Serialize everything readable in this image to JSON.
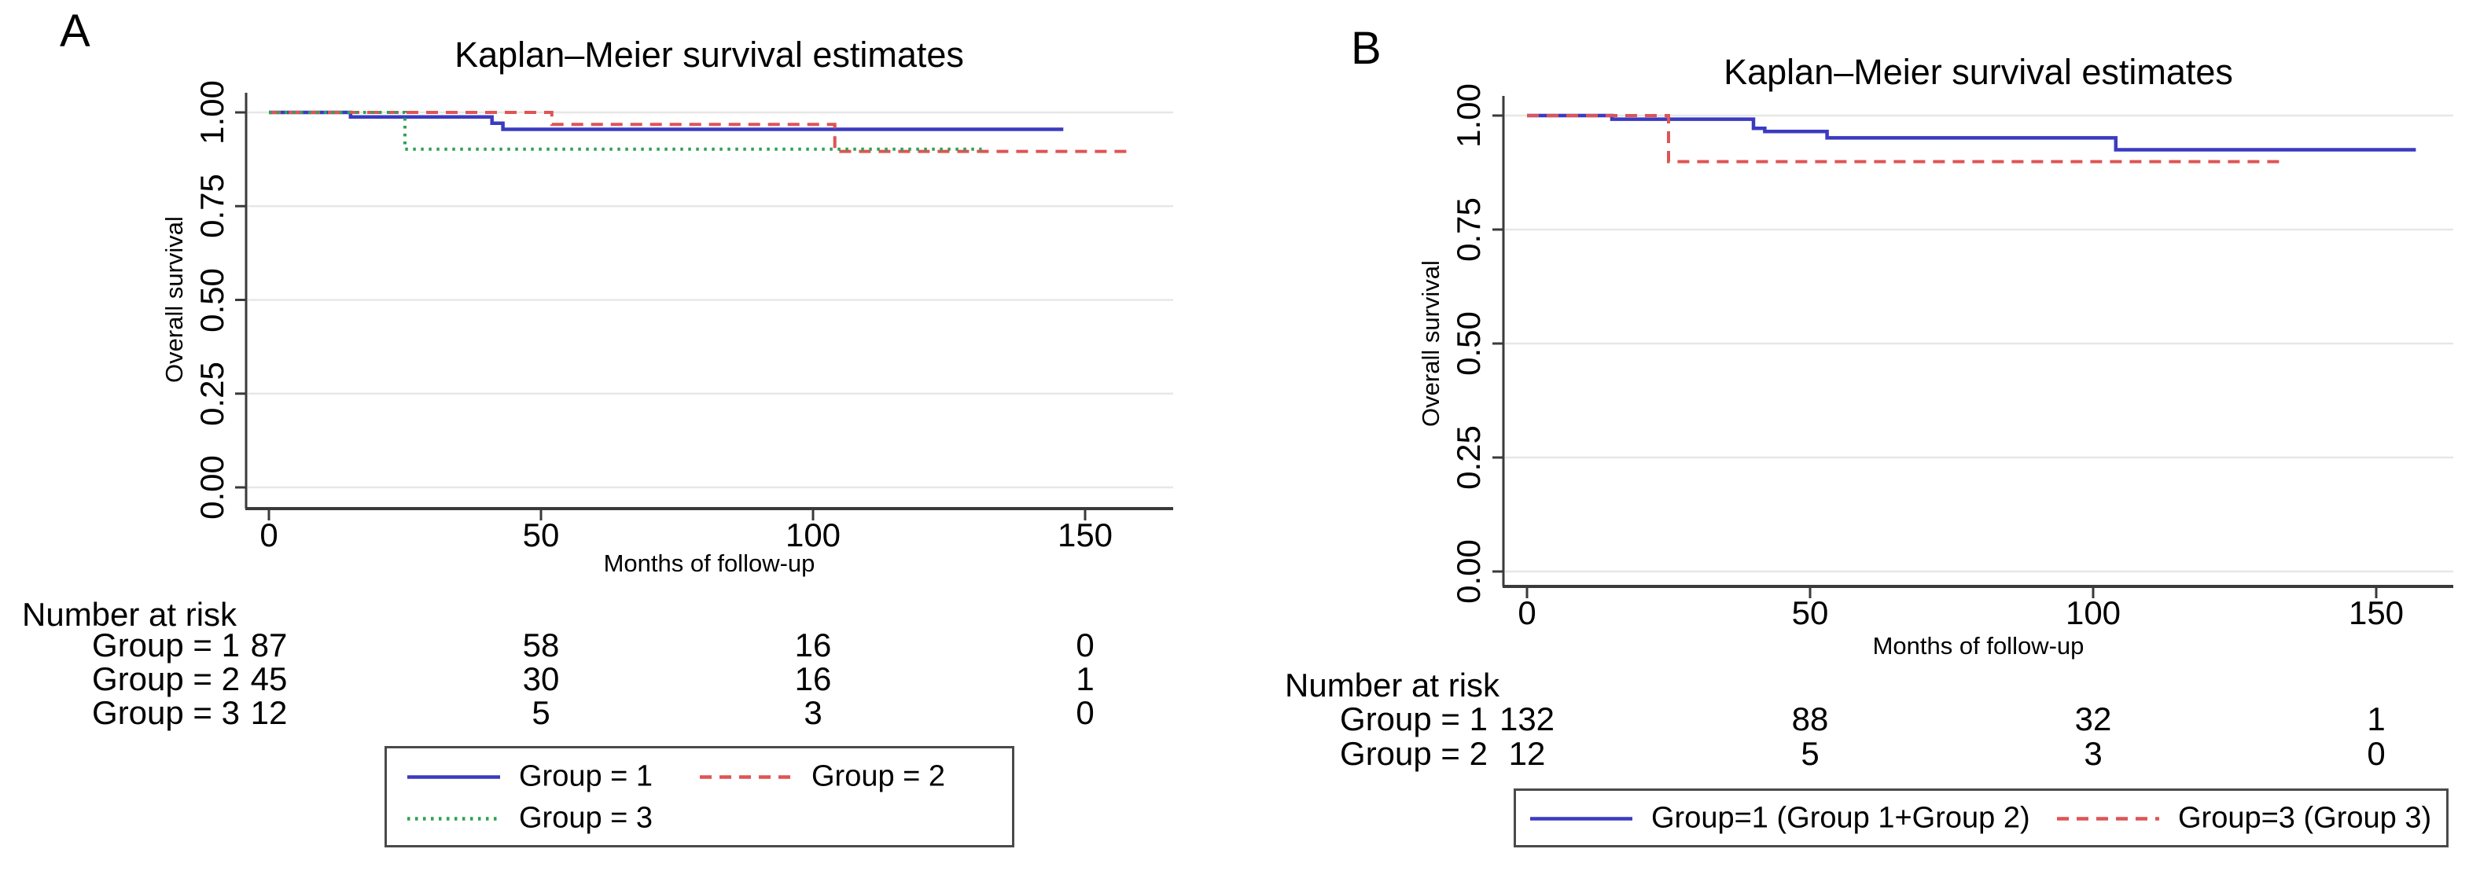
{
  "chart_data": [
    {
      "panel_label": "A",
      "type": "line",
      "subtype": "kaplan-meier-step",
      "title": "Kaplan–Meier survival estimates",
      "xlabel": "Months of follow-up",
      "ylabel": "Overall survival",
      "xlim": [
        0,
        166
      ],
      "ylim": [
        0,
        1
      ],
      "grid": "horizontal",
      "legend_position": "below",
      "x_ticks": [
        0,
        50,
        100,
        150
      ],
      "x_tick_labels": [
        "0",
        "50",
        "100",
        "150"
      ],
      "y_ticks": [
        1.0,
        0.75,
        0.5,
        0.25,
        0.0
      ],
      "y_tick_labels": [
        "1.00",
        "0.75",
        "0.50",
        "0.25",
        "0.00"
      ],
      "series": [
        {
          "name": "Group = 1",
          "color": "#3b3bc0",
          "line_style": "solid",
          "points": [
            [
              0,
              1
            ],
            [
              15,
              1
            ],
            [
              15,
              0.988
            ],
            [
              41,
              0.988
            ],
            [
              41,
              0.971
            ],
            [
              43,
              0.971
            ],
            [
              43,
              0.955
            ],
            [
              146,
              0.955
            ]
          ]
        },
        {
          "name": "Group = 2",
          "color": "#df5454",
          "line_style": "dashed",
          "points": [
            [
              0,
              1
            ],
            [
              52,
              1
            ],
            [
              52,
              0.968
            ],
            [
              104,
              0.968
            ],
            [
              104,
              0.896
            ],
            [
              158,
              0.896
            ]
          ]
        },
        {
          "name": "Group = 3",
          "color": "#2fa153",
          "line_style": "dotted",
          "points": [
            [
              0,
              1
            ],
            [
              25,
              1
            ],
            [
              25,
              0.902
            ],
            [
              131,
              0.902
            ]
          ]
        }
      ],
      "legend_rows": [
        [
          0,
          1
        ],
        [
          2
        ]
      ],
      "number_at_risk": {
        "header": "Number at risk",
        "columns_at_months": [
          0,
          50,
          100,
          150
        ],
        "rows": [
          {
            "label": "Group = 1",
            "counts": [
              "87",
              "58",
              "16",
              "0"
            ]
          },
          {
            "label": "Group = 2",
            "counts": [
              "45",
              "30",
              "16",
              "1"
            ]
          },
          {
            "label": "Group = 3",
            "counts": [
              "12",
              "5",
              "3",
              "0"
            ]
          }
        ]
      }
    },
    {
      "panel_label": "B",
      "type": "line",
      "subtype": "kaplan-meier-step",
      "title": "Kaplan–Meier survival estimates",
      "xlabel": "Months of follow-up",
      "ylabel": "Overall survival",
      "xlim": [
        0,
        164
      ],
      "ylim": [
        0,
        1
      ],
      "grid": "horizontal",
      "legend_position": "below",
      "x_ticks": [
        0,
        50,
        100,
        150
      ],
      "x_tick_labels": [
        "0",
        "50",
        "100",
        "150"
      ],
      "y_ticks": [
        1.0,
        0.75,
        0.5,
        0.25,
        0.0
      ],
      "y_tick_labels": [
        "1.00",
        "0.75",
        "0.50",
        "0.25",
        "0.00"
      ],
      "series": [
        {
          "name": "Group=1 (Group 1+Group 2)",
          "color": "#3b3bc0",
          "line_style": "solid",
          "points": [
            [
              0,
              1
            ],
            [
              15,
              1
            ],
            [
              15,
              0.992
            ],
            [
              40,
              0.992
            ],
            [
              40,
              0.972
            ],
            [
              42,
              0.972
            ],
            [
              42,
              0.965
            ],
            [
              53,
              0.965
            ],
            [
              53,
              0.951
            ],
            [
              104,
              0.951
            ],
            [
              104,
              0.925
            ],
            [
              157,
              0.925
            ]
          ]
        },
        {
          "name": "Group=3 (Group 3)",
          "color": "#df5454",
          "line_style": "dashed",
          "points": [
            [
              0,
              1
            ],
            [
              25,
              1
            ],
            [
              25,
              0.899
            ],
            [
              133,
              0.899
            ]
          ]
        }
      ],
      "legend_rows": [
        [
          0,
          1
        ]
      ],
      "number_at_risk": {
        "header": "Number at risk",
        "columns_at_months": [
          0,
          50,
          100,
          150
        ],
        "rows": [
          {
            "label": "Group = 1",
            "counts": [
              "132",
              "88",
              "32",
              "1"
            ]
          },
          {
            "label": "Group = 2",
            "counts": [
              "12",
              "5",
              "3",
              "0"
            ]
          }
        ]
      }
    }
  ],
  "colors": {
    "group1_blue": "#3b3bc0",
    "group2_red": "#df5454",
    "group3_green": "#2fa153",
    "gridline": "#e7e7e7",
    "axis": "#3a3a3a"
  }
}
